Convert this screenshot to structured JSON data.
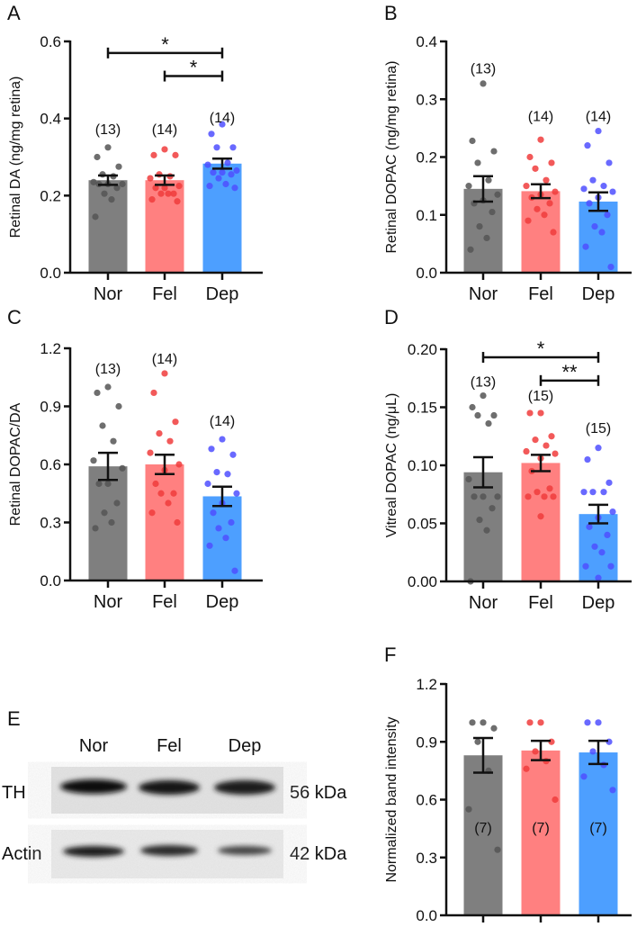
{
  "colors": {
    "Nor": "#7f7f7f",
    "Fel": "#ff8080",
    "Dep": "#4d9fff",
    "NorDot": "#555555",
    "FelDot": "#f03c3c",
    "DepDot": "#4f4fff"
  },
  "panel_E": {
    "letter": "E",
    "lanes": [
      "Nor",
      "Fel",
      "Dep"
    ],
    "rows": [
      {
        "label": "TH",
        "size": "56 kDa"
      },
      {
        "label": "Actin",
        "size": "42 kDa"
      }
    ]
  },
  "chart_data": [
    {
      "letter": "A",
      "type": "bar",
      "ylabel": "Retinal DA (ng/mg retina)",
      "ylim": [
        0,
        0.6
      ],
      "yticks": [
        "0.0",
        "0.2",
        "0.4",
        "0.6"
      ],
      "tickvals": [
        0,
        0.2,
        0.4,
        0.6
      ],
      "categories": [
        "Nor",
        "Fel",
        "Dep"
      ],
      "means": [
        0.24,
        0.24,
        0.283
      ],
      "sem": [
        0.012,
        0.012,
        0.013
      ],
      "n_labels": [
        "(13)",
        "(14)",
        "(14)"
      ],
      "n_pos": [
        0.36,
        0.36,
        0.39
      ],
      "points": [
        [
          0.325,
          0.3,
          0.275,
          0.255,
          0.25,
          0.235,
          0.23,
          0.23,
          0.23,
          0.22,
          0.205,
          0.19,
          0.145
        ],
        [
          0.32,
          0.305,
          0.305,
          0.255,
          0.25,
          0.245,
          0.225,
          0.22,
          0.22,
          0.205,
          0.205,
          0.205,
          0.19,
          0.185
        ],
        [
          0.385,
          0.36,
          0.325,
          0.325,
          0.285,
          0.28,
          0.265,
          0.26,
          0.26,
          0.255,
          0.245,
          0.23,
          0.225,
          0.22
        ]
      ],
      "significance": [
        {
          "from": 0,
          "to": 2,
          "y": 0.57,
          "label": "*"
        },
        {
          "from": 1,
          "to": 2,
          "y": 0.51,
          "label": "*"
        }
      ]
    },
    {
      "letter": "B",
      "type": "bar",
      "ylabel": "Retinal DOPAC (ng/mg retina)",
      "ylim": [
        0,
        0.4
      ],
      "yticks": [
        "0.0",
        "0.1",
        "0.2",
        "0.3",
        "0.4"
      ],
      "tickvals": [
        0,
        0.1,
        0.2,
        0.3,
        0.4
      ],
      "categories": [
        "Nor",
        "Fel",
        "Dep"
      ],
      "means": [
        0.145,
        0.141,
        0.123
      ],
      "sem": [
        0.022,
        0.012,
        0.016
      ],
      "n_labels": [
        "(13)",
        "(14)",
        "(14)"
      ],
      "n_pos": [
        0.345,
        0.262,
        0.262
      ],
      "points": [
        [
          0.327,
          0.228,
          0.21,
          0.19,
          0.16,
          0.15,
          0.135,
          0.125,
          0.12,
          0.105,
          0.08,
          0.06,
          0.04
        ],
        [
          0.23,
          0.2,
          0.19,
          0.18,
          0.16,
          0.15,
          0.14,
          0.135,
          0.13,
          0.12,
          0.11,
          0.1,
          0.09,
          0.07
        ],
        [
          0.245,
          0.22,
          0.19,
          0.16,
          0.15,
          0.145,
          0.14,
          0.13,
          0.12,
          0.1,
          0.08,
          0.07,
          0.045,
          0.01
        ]
      ],
      "significance": []
    },
    {
      "letter": "C",
      "type": "bar",
      "ylabel": "Retinal DOPAC/DA",
      "ylim": [
        0,
        1.2
      ],
      "yticks": [
        "0.0",
        "0.3",
        "0.6",
        "0.9",
        "1.2"
      ],
      "tickvals": [
        0,
        0.3,
        0.6,
        0.9,
        1.2
      ],
      "categories": [
        "Nor",
        "Fel",
        "Dep"
      ],
      "means": [
        0.59,
        0.6,
        0.435
      ],
      "sem": [
        0.07,
        0.05,
        0.05
      ],
      "n_labels": [
        "(13)",
        "(14)",
        "(14)"
      ],
      "n_pos": [
        1.07,
        1.12,
        0.8
      ],
      "points": [
        [
          1.0,
          0.97,
          0.9,
          0.8,
          0.72,
          0.62,
          0.58,
          0.5,
          0.5,
          0.4,
          0.35,
          0.3,
          0.27
        ],
        [
          1.07,
          0.97,
          0.82,
          0.76,
          0.72,
          0.66,
          0.6,
          0.57,
          0.5,
          0.45,
          0.45,
          0.4,
          0.35,
          0.3
        ],
        [
          0.73,
          0.68,
          0.65,
          0.56,
          0.55,
          0.5,
          0.45,
          0.4,
          0.35,
          0.3,
          0.27,
          0.22,
          0.18,
          0.05
        ]
      ],
      "significance": []
    },
    {
      "letter": "D",
      "type": "bar",
      "ylabel": "Vitreal DOPAC (ng/μL)",
      "ylim": [
        0,
        0.2
      ],
      "yticks": [
        "0.00",
        "0.05",
        "0.10",
        "0.15",
        "0.20"
      ],
      "tickvals": [
        0,
        0.05,
        0.1,
        0.15,
        0.2
      ],
      "categories": [
        "Nor",
        "Fel",
        "Dep"
      ],
      "means": [
        0.094,
        0.102,
        0.058
      ],
      "sem": [
        0.013,
        0.007,
        0.008
      ],
      "n_labels": [
        "(13)",
        "(15)",
        "(15)"
      ],
      "n_pos": [
        0.168,
        0.156,
        0.128
      ],
      "points": [
        [
          0.16,
          0.15,
          0.143,
          0.143,
          0.136,
          0.088,
          0.073,
          0.073,
          0.073,
          0.063,
          0.053,
          0.044,
          0.0
        ],
        [
          0.145,
          0.145,
          0.125,
          0.122,
          0.117,
          0.112,
          0.11,
          0.106,
          0.095,
          0.08,
          0.077,
          0.073,
          0.073,
          0.073,
          0.056
        ],
        [
          0.115,
          0.105,
          0.085,
          0.077,
          0.077,
          0.077,
          0.06,
          0.055,
          0.047,
          0.04,
          0.03,
          0.025,
          0.013,
          0.013,
          0.003
        ]
      ],
      "significance": [
        {
          "from": 0,
          "to": 2,
          "y": 0.193,
          "label": "*"
        },
        {
          "from": 1,
          "to": 2,
          "y": 0.173,
          "label": "**"
        }
      ]
    },
    {
      "letter": "F",
      "type": "bar",
      "ylabel": "Normalized band intensity",
      "ylim": [
        0,
        1.2
      ],
      "yticks": [
        "0.0",
        "0.3",
        "0.6",
        "0.9",
        "1.2"
      ],
      "tickvals": [
        0,
        0.3,
        0.6,
        0.9,
        1.2
      ],
      "categories": [
        "Nor",
        "Fel",
        "Dep"
      ],
      "means": [
        0.83,
        0.855,
        0.845
      ],
      "sem": [
        0.09,
        0.05,
        0.06
      ],
      "n_labels": [
        "(7)",
        "(7)",
        "(7)"
      ],
      "n_pos": [
        0.43,
        0.43,
        0.43
      ],
      "points": [
        [
          1.0,
          1.0,
          0.97,
          0.9,
          0.75,
          0.55,
          0.34
        ],
        [
          1.0,
          1.0,
          0.9,
          0.85,
          0.8,
          0.76,
          0.6
        ],
        [
          1.0,
          1.0,
          0.9,
          0.85,
          0.78,
          0.72,
          0.65
        ]
      ],
      "significance": []
    }
  ]
}
